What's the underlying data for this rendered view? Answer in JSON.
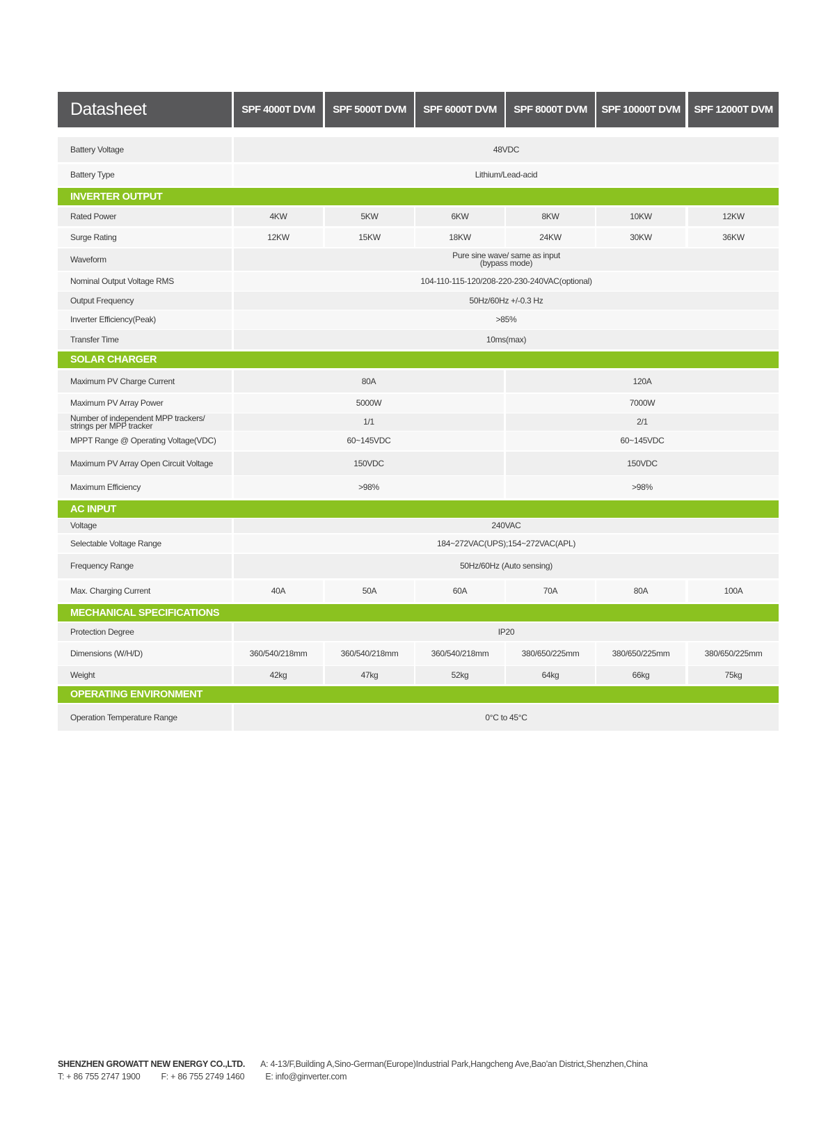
{
  "header": {
    "title": "Datasheet",
    "models": [
      "SPF 4000T DVM",
      "SPF 5000T DVM",
      "SPF 6000T DVM",
      "SPF 8000T DVM",
      "SPF 10000T DVM",
      "SPF 12000T DVM"
    ]
  },
  "colors": {
    "header_bg": "#58585a",
    "section_bg": "#8bc220",
    "row_a": "#efefef",
    "row_b": "#f7f7f7"
  },
  "sections": [
    {
      "title": "",
      "rows": [
        {
          "label": "Battery Voltage",
          "values": [
            "48VDC"
          ]
        },
        {
          "label": "Battery Type",
          "values": [
            "Lithium/Lead-acid"
          ]
        }
      ]
    },
    {
      "title": "INVERTER OUTPUT",
      "rows": [
        {
          "label": "Rated Power",
          "values": [
            "4KW",
            "5KW",
            "6KW",
            "8KW",
            "10KW",
            "12KW"
          ]
        },
        {
          "label": "Surge Rating",
          "values": [
            "12KW",
            "15KW",
            "18KW",
            "24KW",
            "30KW",
            "36KW"
          ]
        },
        {
          "label": "Waveform",
          "values": [
            "Pure sine wave/ same as input\n(bypass mode)"
          ]
        },
        {
          "label": "Nominal Output Voltage RMS",
          "values": [
            "104-110-115-120/208-220-230-240VAC(optional)"
          ]
        },
        {
          "label": "Output Frequency",
          "values": [
            "50Hz/60Hz +/-0.3 Hz"
          ]
        },
        {
          "label": "Inverter Efficiency(Peak)",
          "values": [
            ">85%"
          ]
        },
        {
          "label": "Transfer Time",
          "values": [
            "10ms(max)"
          ]
        }
      ]
    },
    {
      "title": "SOLAR CHARGER",
      "rows": [
        {
          "label": "Maximum PV Charge Current",
          "values": [
            "80A",
            "120A"
          ]
        },
        {
          "label": "Maximum PV Array Power",
          "values": [
            "5000W",
            "7000W"
          ]
        },
        {
          "label": "Number of independent MPP trackers/\nstrings per MPP tracker",
          "values": [
            "1/1",
            "2/1"
          ]
        },
        {
          "label": "MPPT Range @ Operating Voltage(VDC)",
          "values": [
            "60~145VDC",
            "60~145VDC"
          ]
        },
        {
          "label": "Maximum PV Array Open Circuit Voltage",
          "values": [
            "150VDC",
            "150VDC"
          ]
        },
        {
          "label": "Maximum Efficiency",
          "values": [
            ">98%",
            ">98%"
          ]
        }
      ]
    },
    {
      "title": "AC INPUT",
      "rows": [
        {
          "label": "Voltage",
          "values": [
            "240VAC"
          ]
        },
        {
          "label": "Selectable Voltage Range",
          "values": [
            "184~272VAC(UPS);154~272VAC(APL)"
          ]
        },
        {
          "label": "Frequency Range",
          "values": [
            "50Hz/60Hz (Auto sensing)"
          ]
        },
        {
          "label": "Max. Charging Current",
          "values": [
            "40A",
            "50A",
            "60A",
            "70A",
            "80A",
            "100A"
          ]
        }
      ]
    },
    {
      "title": "MECHANICAL SPECIFICATIONS",
      "rows": [
        {
          "label": "Protection Degree",
          "values": [
            "IP20"
          ]
        },
        {
          "label": "Dimensions (W/H/D)",
          "values": [
            "360/540/218mm",
            "360/540/218mm",
            "360/540/218mm",
            "380/650/225mm",
            "380/650/225mm",
            "380/650/225mm"
          ]
        },
        {
          "label": "Weight",
          "values": [
            "42kg",
            "47kg",
            "52kg",
            "64kg",
            "66kg",
            "75kg"
          ]
        }
      ]
    },
    {
      "title": "OPERATING ENVIRONMENT",
      "rows": [
        {
          "label": "Operation Temperature Range",
          "values": [
            "0°C to 45°C"
          ]
        }
      ]
    }
  ],
  "footer": {
    "company": "SHENZHEN GROWATT NEW ENERGY CO.,LTD.",
    "address": "A: 4-13/F,Building A,Sino-German(Europe)Industrial Park,Hangcheng Ave,Bao'an District,Shenzhen,China",
    "phone": "T:  + 86 755 2747 1900",
    "fax": "F:  + 86 755 2749 1460",
    "email": "E:  info@ginverter.com"
  }
}
